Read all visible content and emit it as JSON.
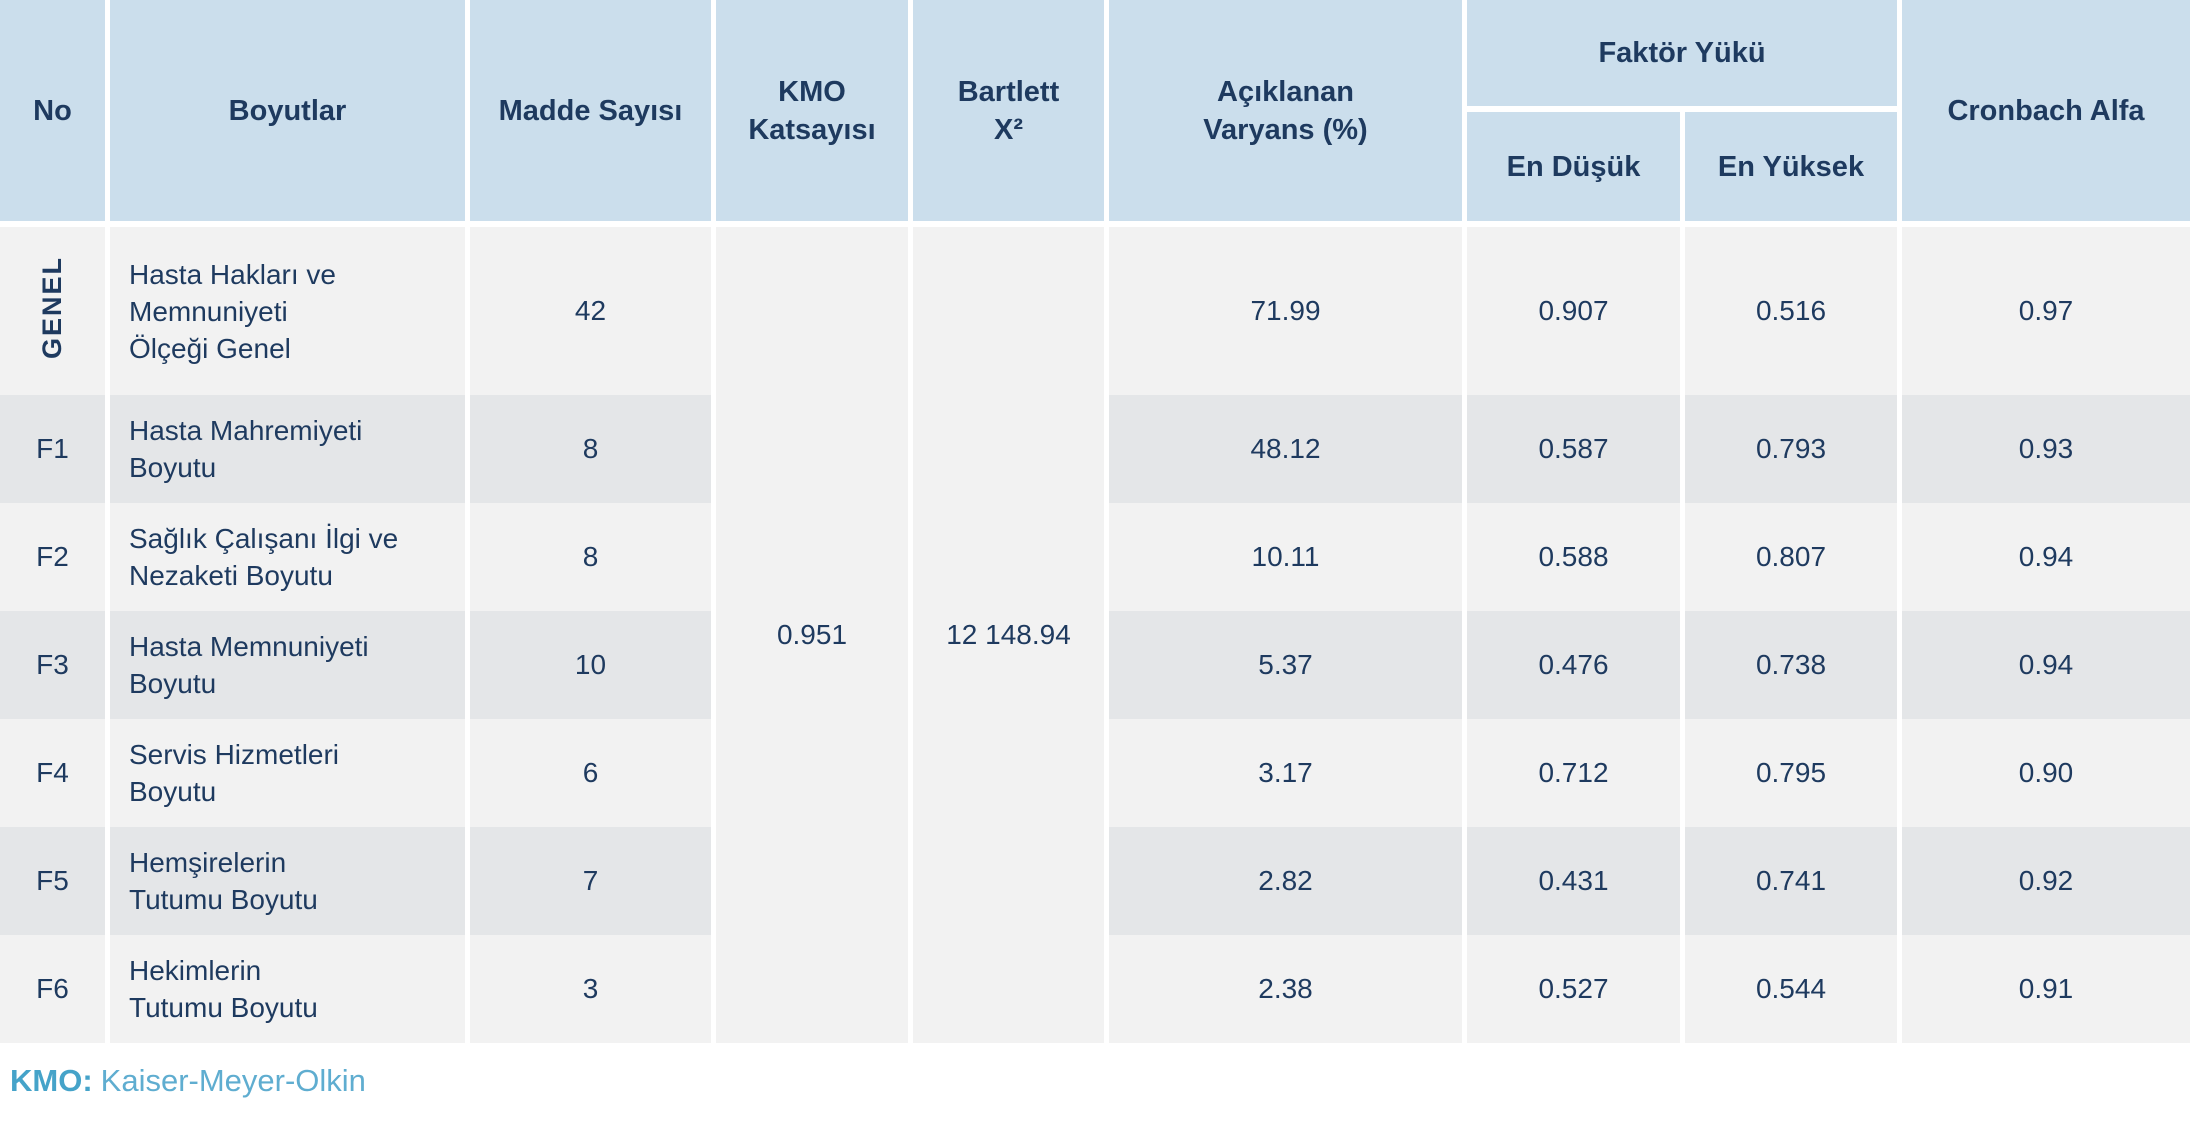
{
  "colors": {
    "header_bg": "#cbdeec",
    "row_light": "#f2f2f2",
    "row_dark": "#e4e6e8",
    "text": "#1e3a5f",
    "footnote_label": "#45a3c9",
    "footnote_text": "#5fadd0",
    "gap": "#ffffff"
  },
  "table": {
    "headers": {
      "no": "No",
      "boyutlar": "Boyutlar",
      "madde_sayisi": "Madde Sayısı",
      "kmo": "KMO\nKatsayısı",
      "bartlett": "Bartlett\nX²",
      "varyans": "Açıklanan\nVaryans (%)",
      "faktor_yuku": "Faktör Yükü",
      "en_dusuk": "En Düşük",
      "en_yuksek": "En Yüksek",
      "cronbach": "Cronbach Alfa"
    },
    "kmo_value": "0.951",
    "bartlett_value": "12 148.94",
    "rows": [
      {
        "no": "GENEL",
        "boyut": "Hasta Hakları ve\nMemnuniyeti\nÖlçeği Genel",
        "madde": "42",
        "varyans": "71.99",
        "dusuk": "0.907",
        "yuksek": "0.516",
        "cronbach": "0.97"
      },
      {
        "no": "F1",
        "boyut": "Hasta Mahremiyeti\nBoyutu",
        "madde": "8",
        "varyans": "48.12",
        "dusuk": "0.587",
        "yuksek": "0.793",
        "cronbach": "0.93"
      },
      {
        "no": "F2",
        "boyut": "Sağlık Çalışanı İlgi ve\nNezaketi Boyutu",
        "madde": "8",
        "varyans": "10.11",
        "dusuk": "0.588",
        "yuksek": "0.807",
        "cronbach": "0.94"
      },
      {
        "no": "F3",
        "boyut": "Hasta Memnuniyeti\nBoyutu",
        "madde": "10",
        "varyans": "5.37",
        "dusuk": "0.476",
        "yuksek": "0.738",
        "cronbach": "0.94"
      },
      {
        "no": "F4",
        "boyut": "Servis Hizmetleri\nBoyutu",
        "madde": "6",
        "varyans": "3.17",
        "dusuk": "0.712",
        "yuksek": "0.795",
        "cronbach": "0.90"
      },
      {
        "no": "F5",
        "boyut": "Hemşirelerin\nTutumu Boyutu",
        "madde": "7",
        "varyans": "2.82",
        "dusuk": "0.431",
        "yuksek": "0.741",
        "cronbach": "0.92"
      },
      {
        "no": "F6",
        "boyut": "Hekimlerin\nTutumu Boyutu",
        "madde": "3",
        "varyans": "2.38",
        "dusuk": "0.527",
        "yuksek": "0.544",
        "cronbach": "0.91"
      }
    ]
  },
  "footnote": {
    "label": "KMO:",
    "text": "Kaiser-Meyer-Olkin"
  },
  "chart_data": {
    "type": "table",
    "title": "",
    "columns": [
      "No",
      "Boyutlar",
      "Madde Sayısı",
      "KMO Katsayısı",
      "Bartlett X²",
      "Açıklanan Varyans (%)",
      "Faktör Yükü En Düşük",
      "Faktör Yükü En Yüksek",
      "Cronbach Alfa"
    ],
    "merged_notes": "KMO Katsayısı (0.951) and Bartlett X² (12 148.94) are single cells spanning all 7 body rows",
    "rows": [
      [
        "GENEL",
        "Hasta Hakları ve Memnuniyeti Ölçeği Genel",
        42,
        0.951,
        "12 148.94",
        71.99,
        0.907,
        0.516,
        0.97
      ],
      [
        "F1",
        "Hasta Mahremiyeti Boyutu",
        8,
        "",
        "",
        48.12,
        0.587,
        0.793,
        0.93
      ],
      [
        "F2",
        "Sağlık Çalışanı İlgi ve Nezaketi Boyutu",
        8,
        "",
        "",
        10.11,
        0.588,
        0.807,
        0.94
      ],
      [
        "F3",
        "Hasta Memnuniyeti Boyutu",
        10,
        "",
        "",
        5.37,
        0.476,
        0.738,
        0.94
      ],
      [
        "F4",
        "Servis Hizmetleri Boyutu",
        6,
        "",
        "",
        3.17,
        0.712,
        0.795,
        0.9
      ],
      [
        "F5",
        "Hemşirelerin Tutumu Boyutu",
        7,
        "",
        "",
        2.82,
        0.431,
        0.741,
        0.92
      ],
      [
        "F6",
        "Hekimlerin Tutumu Boyutu",
        3,
        "",
        "",
        2.38,
        0.527,
        0.544,
        0.91
      ]
    ],
    "footnote": "KMO: Kaiser-Meyer-Olkin"
  }
}
